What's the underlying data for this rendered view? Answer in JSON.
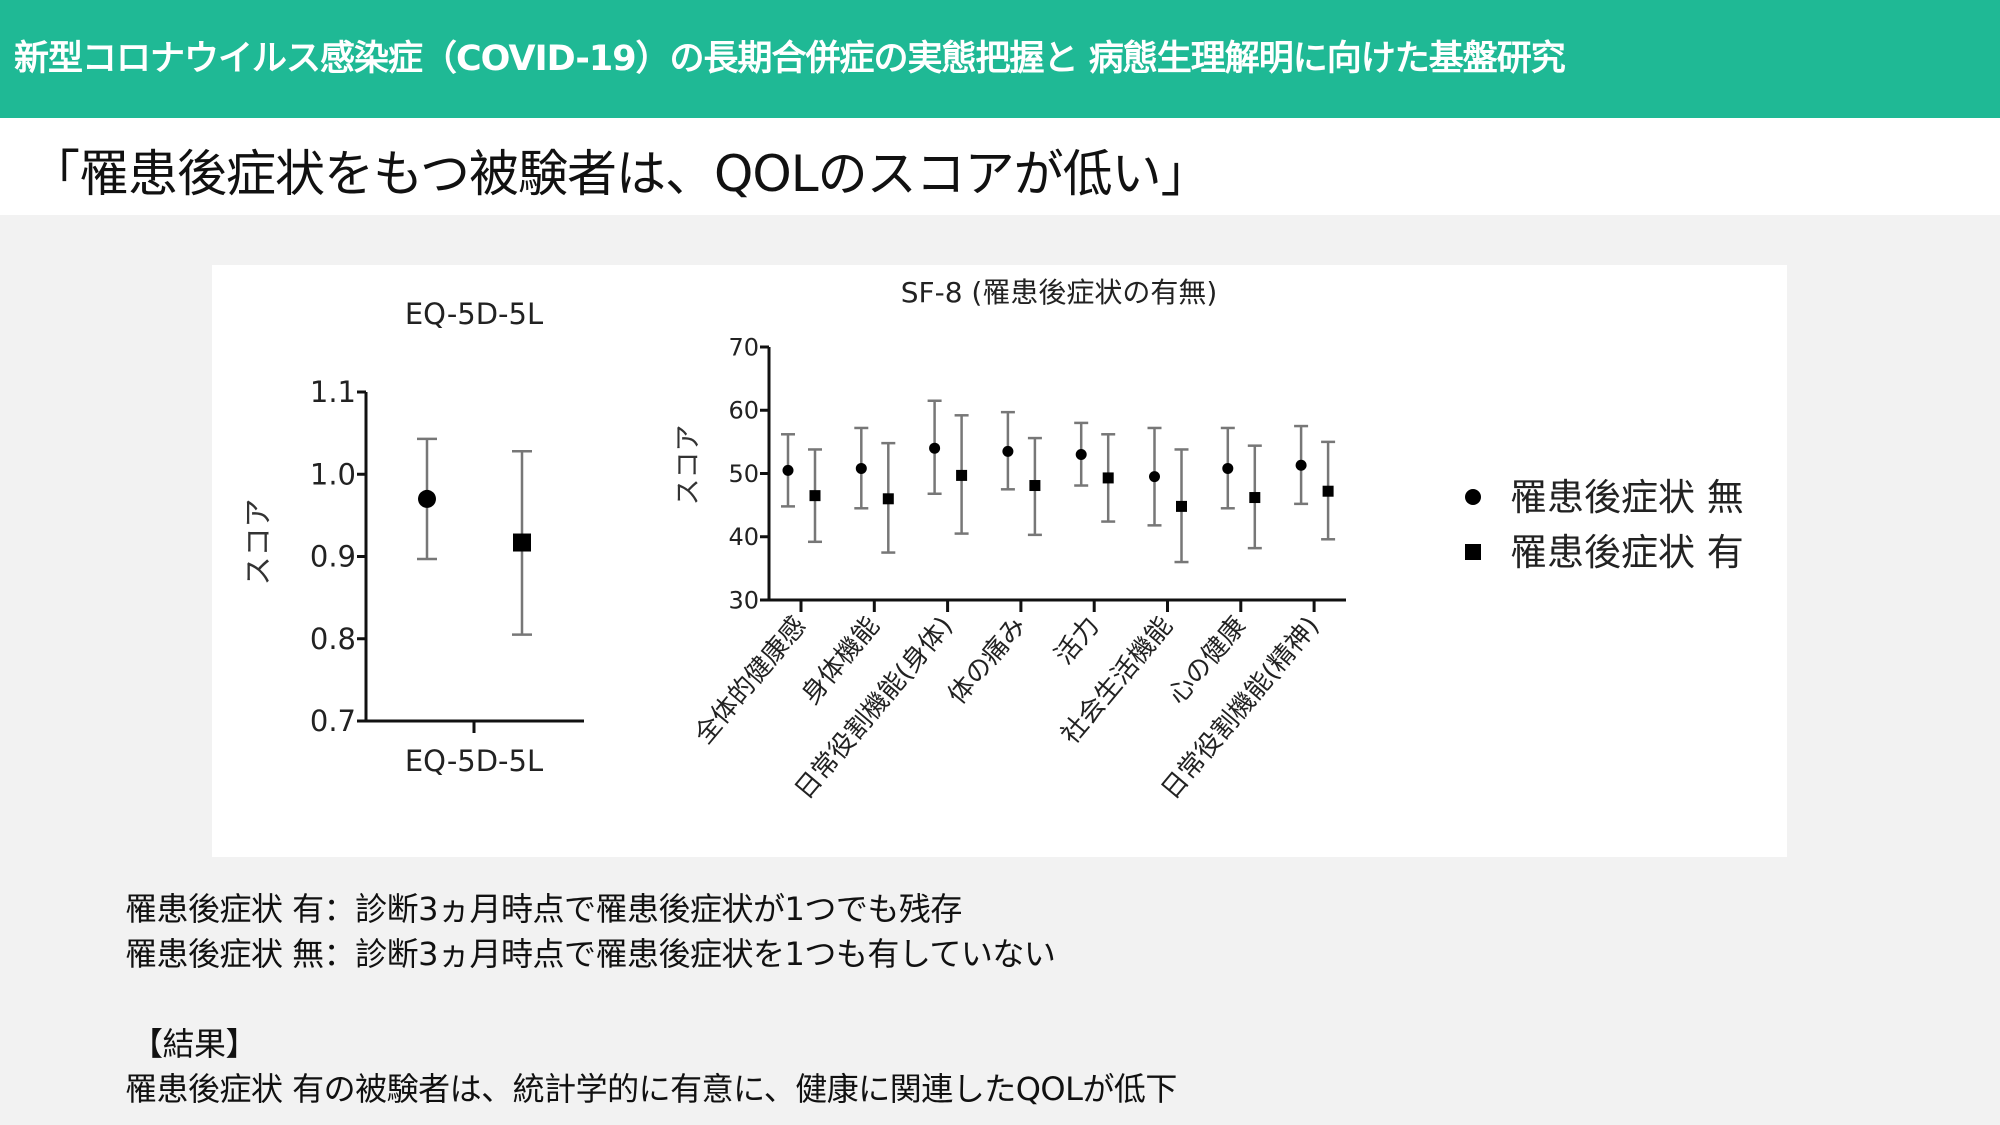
{
  "header": {
    "title": "新型コロナウイルス感染症（COVID-19）の長期合併症の実態把握と 病態生理解明に向けた基盤研究",
    "color": "#1fb995"
  },
  "subtitle": "「罹患後症状をもつ被験者は、QOLのスコアが低い」",
  "chart_data": [
    {
      "type": "scatter",
      "title": "EQ-5D-5L",
      "xlabel": "EQ-5D-5L",
      "ylabel": "スコア",
      "ylim": [
        0.7,
        1.1
      ],
      "yticks": [
        "0.7",
        "0.8",
        "0.9",
        "1.0",
        "1.1"
      ],
      "categories": [
        "EQ-5D-5L"
      ],
      "series": [
        {
          "name": "罹患後症状 無",
          "marker": "circle",
          "values": [
            0.97
          ],
          "lower": [
            0.897
          ],
          "upper": [
            1.043
          ]
        },
        {
          "name": "罹患後症状 有",
          "marker": "square",
          "values": [
            0.917
          ],
          "lower": [
            0.805
          ],
          "upper": [
            1.028
          ]
        }
      ]
    },
    {
      "type": "scatter",
      "title": "SF-8 (罹患後症状の有無)",
      "xlabel": "",
      "ylabel": "スコア",
      "ylim": [
        30,
        70
      ],
      "yticks": [
        "30",
        "40",
        "50",
        "60",
        "70"
      ],
      "categories": [
        "全体的健康感",
        "身体機能",
        "日常役割機能(身体)",
        "体の痛み",
        "活力",
        "社会生活機能",
        "心の健康",
        "日常役割機能(精神)"
      ],
      "series": [
        {
          "name": "罹患後症状 無",
          "marker": "circle",
          "values": [
            50.5,
            50.8,
            54.0,
            53.5,
            53.0,
            49.5,
            50.8,
            51.3
          ],
          "lower": [
            44.8,
            44.5,
            46.8,
            47.5,
            48.1,
            41.8,
            44.5,
            45.2
          ],
          "upper": [
            56.2,
            57.2,
            61.5,
            59.7,
            58.0,
            57.2,
            57.2,
            57.5
          ]
        },
        {
          "name": "罹患後症状 有",
          "marker": "square",
          "values": [
            46.5,
            46.0,
            49.7,
            48.1,
            49.3,
            44.8,
            46.2,
            47.2
          ],
          "lower": [
            39.2,
            37.5,
            40.5,
            40.3,
            42.4,
            36.0,
            38.2,
            39.6
          ],
          "upper": [
            53.8,
            54.8,
            59.2,
            55.6,
            56.2,
            53.8,
            54.4,
            55.0
          ]
        }
      ],
      "legend": {
        "placement": "right",
        "entries": [
          "罹患後症状 無",
          "罹患後症状 有"
        ]
      }
    }
  ],
  "notes": {
    "line1": "罹患後症状 有：診断3ヵ月時点で罹患後症状が1つでも残存",
    "line2": "罹患後症状 無：診断3ヵ月時点で罹患後症状を1つも有していない",
    "result_heading": "【結果】",
    "result_text": "罹患後症状 有の被験者は、統計学的に有意に、健康に関連したQOLが低下"
  }
}
